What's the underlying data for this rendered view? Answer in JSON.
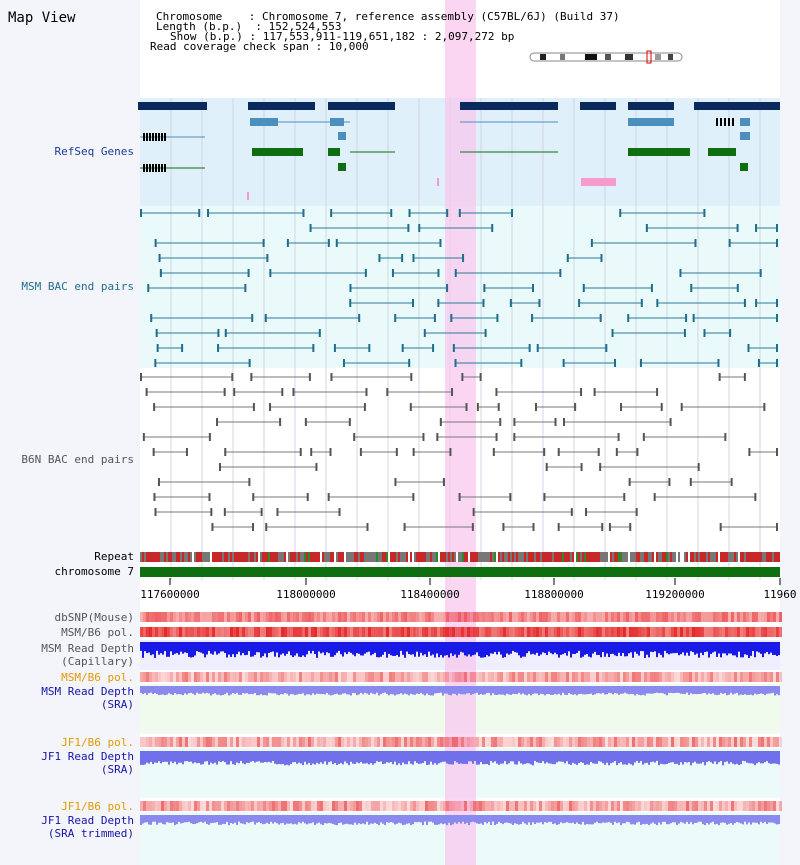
{
  "title": "Map View",
  "info": {
    "chromosome_label": "Chromosome",
    "chromosome_value": "Chromosome 7, reference assembly (C57BL/6J) (Build 37)",
    "length_label": "Length (b.p.)",
    "length_value": "152,524,553",
    "show_label": "Show (b.p.)",
    "show_value": "117,553,911-119,651,182 : 2,097,272 bp",
    "coverage_label": "Read coverage check span",
    "coverage_value": "10,000"
  },
  "tracks": {
    "refseq": "RefSeq Genes",
    "msm_bac": "MSM BAC end pairs",
    "b6n_bac": "B6N BAC end pairs",
    "repeat": "Repeat",
    "chromosome": "chromosome 7",
    "dbsnp": "dbSNP(Mouse)",
    "msm_b6_pol": "MSM/B6 pol.",
    "msm_depth_cap_1": "MSM Read Depth",
    "msm_depth_cap_2": "(Capillary)",
    "msm_b6_pol_2": "MSM/B6 pol.",
    "msm_depth_sra_1": "MSM Read Depth",
    "msm_depth_sra_2": "(SRA)",
    "jf1_b6_pol": "JF1/B6 pol.",
    "jf1_depth_sra_1": "JF1 Read Depth",
    "jf1_depth_sra_2": "(SRA)",
    "jf1_b6_pol_2": "JF1/B6 pol.",
    "jf1_depth_trim_1": "JF1 Read Depth",
    "jf1_depth_trim_2": "(SRA trimmed)"
  },
  "axis": {
    "ticks": [
      "117600000",
      "118000000",
      "118400000",
      "118800000",
      "119200000",
      "11960"
    ]
  },
  "colors": {
    "gene_navy": "#0a2a5e",
    "gene_blue": "#4a8fbd",
    "gene_green": "#0f6e0f",
    "highlight": "#f8c8ee",
    "chromosome": "#0f6e0f"
  }
}
